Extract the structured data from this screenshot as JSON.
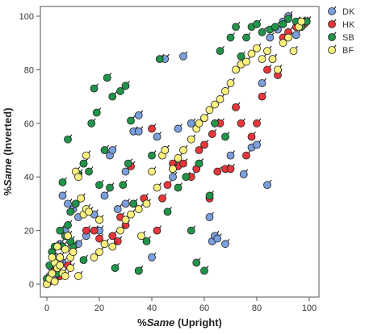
{
  "chart_data": {
    "type": "scatter",
    "xlabel_prefix": "%",
    "xlabel_emph": "Same",
    "xlabel_suffix": " (Upright)",
    "ylabel_prefix": "%",
    "ylabel_emph": "Same",
    "ylabel_suffix": "  (Inverted)",
    "xlim": [
      0,
      100
    ],
    "ylim": [
      0,
      100
    ],
    "xticks": [
      0,
      20,
      40,
      60,
      80,
      100
    ],
    "yticks": [
      0,
      20,
      40,
      60,
      80,
      100
    ],
    "grid": false,
    "legend_position": "top-right",
    "series": [
      {
        "name": "DK",
        "color": "#7b9fdc",
        "points": [
          [
            0,
            0
          ],
          [
            1,
            3
          ],
          [
            2,
            6
          ],
          [
            3,
            2
          ],
          [
            4,
            10
          ],
          [
            5,
            15
          ],
          [
            6,
            8
          ],
          [
            2,
            12
          ],
          [
            8,
            30
          ],
          [
            10,
            28
          ],
          [
            12,
            25
          ],
          [
            14,
            45
          ],
          [
            18,
            26
          ],
          [
            20,
            20
          ],
          [
            22,
            33
          ],
          [
            24,
            48
          ],
          [
            25,
            50
          ],
          [
            27,
            28
          ],
          [
            30,
            30
          ],
          [
            33,
            57
          ],
          [
            35,
            63
          ],
          [
            40,
            10
          ],
          [
            42,
            55
          ],
          [
            45,
            50
          ],
          [
            48,
            40
          ],
          [
            50,
            58
          ],
          [
            52,
            85
          ],
          [
            55,
            60
          ],
          [
            58,
            45
          ],
          [
            60,
            62
          ],
          [
            62,
            25
          ],
          [
            63,
            16
          ],
          [
            64,
            18
          ],
          [
            65,
            17
          ],
          [
            68,
            15
          ],
          [
            70,
            48
          ],
          [
            75,
            41
          ],
          [
            78,
            51
          ],
          [
            80,
            52
          ],
          [
            82,
            75
          ],
          [
            84,
            37
          ],
          [
            85,
            92
          ],
          [
            88,
            95
          ],
          [
            90,
            98
          ],
          [
            92,
            100
          ],
          [
            95,
            93
          ],
          [
            96,
            97
          ],
          [
            98,
            98
          ],
          [
            45,
            84
          ],
          [
            35,
            57
          ],
          [
            30,
            42
          ],
          [
            15,
            18
          ],
          [
            12,
            15
          ],
          [
            6,
            33
          ],
          [
            7,
            20
          ]
        ]
      },
      {
        "name": "HK",
        "color": "#e8363a",
        "points": [
          [
            1,
            1
          ],
          [
            3,
            5
          ],
          [
            5,
            3
          ],
          [
            8,
            7
          ],
          [
            10,
            12
          ],
          [
            15,
            20
          ],
          [
            18,
            20
          ],
          [
            20,
            17
          ],
          [
            22,
            15
          ],
          [
            25,
            18
          ],
          [
            27,
            16
          ],
          [
            28,
            25
          ],
          [
            30,
            22
          ],
          [
            32,
            44
          ],
          [
            35,
            5
          ],
          [
            37,
            32
          ],
          [
            40,
            58
          ],
          [
            42,
            20
          ],
          [
            44,
            32
          ],
          [
            46,
            37
          ],
          [
            48,
            45
          ],
          [
            50,
            44
          ],
          [
            52,
            45
          ],
          [
            55,
            40
          ],
          [
            57,
            43
          ],
          [
            58,
            50
          ],
          [
            60,
            52
          ],
          [
            62,
            32
          ],
          [
            63,
            56
          ],
          [
            65,
            42
          ],
          [
            66,
            60
          ],
          [
            68,
            43
          ],
          [
            70,
            43
          ],
          [
            72,
            66
          ],
          [
            74,
            60
          ],
          [
            76,
            48
          ],
          [
            78,
            55
          ],
          [
            80,
            60
          ],
          [
            82,
            70
          ],
          [
            84,
            80
          ],
          [
            86,
            84
          ],
          [
            88,
            78
          ],
          [
            90,
            92
          ],
          [
            92,
            94
          ],
          [
            95,
            96
          ],
          [
            97,
            98
          ],
          [
            98,
            97
          ],
          [
            99,
            98
          ]
        ]
      },
      {
        "name": "SB",
        "color": "#21944a",
        "points": [
          [
            0,
            2
          ],
          [
            1,
            7
          ],
          [
            2,
            12
          ],
          [
            3,
            14
          ],
          [
            4,
            4
          ],
          [
            5,
            20
          ],
          [
            6,
            14
          ],
          [
            7,
            18
          ],
          [
            8,
            22
          ],
          [
            9,
            27
          ],
          [
            10,
            14
          ],
          [
            11,
            30
          ],
          [
            12,
            41
          ],
          [
            14,
            45
          ],
          [
            16,
            42
          ],
          [
            17,
            60
          ],
          [
            18,
            73
          ],
          [
            19,
            64
          ],
          [
            20,
            37
          ],
          [
            22,
            50
          ],
          [
            23,
            77
          ],
          [
            24,
            36
          ],
          [
            25,
            70
          ],
          [
            26,
            6
          ],
          [
            28,
            72
          ],
          [
            29,
            37
          ],
          [
            30,
            74
          ],
          [
            31,
            45
          ],
          [
            32,
            61
          ],
          [
            33,
            30
          ],
          [
            35,
            5
          ],
          [
            38,
            16
          ],
          [
            40,
            48
          ],
          [
            43,
            84
          ],
          [
            46,
            27
          ],
          [
            48,
            43
          ],
          [
            50,
            36
          ],
          [
            53,
            40
          ],
          [
            55,
            20
          ],
          [
            57,
            8
          ],
          [
            58,
            45
          ],
          [
            60,
            5
          ],
          [
            62,
            33
          ],
          [
            64,
            60
          ],
          [
            66,
            87
          ],
          [
            68,
            55
          ],
          [
            70,
            92
          ],
          [
            72,
            96
          ],
          [
            74,
            85
          ],
          [
            76,
            92
          ],
          [
            78,
            96
          ],
          [
            80,
            97
          ],
          [
            82,
            94
          ],
          [
            85,
            95
          ],
          [
            87,
            96
          ],
          [
            90,
            97
          ],
          [
            92,
            99
          ],
          [
            95,
            98
          ],
          [
            97,
            96
          ],
          [
            99,
            98
          ],
          [
            8,
            54
          ],
          [
            6,
            38
          ],
          [
            9,
            16
          ],
          [
            14,
            9
          ]
        ]
      },
      {
        "name": "BF",
        "color": "#fbf17e",
        "points": [
          [
            0,
            0
          ],
          [
            1,
            2
          ],
          [
            2,
            4
          ],
          [
            3,
            8
          ],
          [
            4,
            6
          ],
          [
            5,
            10
          ],
          [
            6,
            4
          ],
          [
            7,
            13
          ],
          [
            8,
            18
          ],
          [
            9,
            10
          ],
          [
            10,
            12
          ],
          [
            11,
            42
          ],
          [
            12,
            40
          ],
          [
            13,
            32
          ],
          [
            14,
            26
          ],
          [
            15,
            28
          ],
          [
            16,
            27
          ],
          [
            18,
            10
          ],
          [
            20,
            12
          ],
          [
            22,
            15
          ],
          [
            25,
            14
          ],
          [
            28,
            20
          ],
          [
            30,
            24
          ],
          [
            32,
            26
          ],
          [
            35,
            28
          ],
          [
            36,
            18
          ],
          [
            38,
            30
          ],
          [
            40,
            42
          ],
          [
            42,
            36
          ],
          [
            44,
            48
          ],
          [
            45,
            50
          ],
          [
            48,
            43
          ],
          [
            50,
            47
          ],
          [
            52,
            50
          ],
          [
            55,
            54
          ],
          [
            57,
            58
          ],
          [
            58,
            60
          ],
          [
            60,
            62
          ],
          [
            62,
            65
          ],
          [
            64,
            67
          ],
          [
            66,
            69
          ],
          [
            68,
            72
          ],
          [
            70,
            75
          ],
          [
            72,
            80
          ],
          [
            74,
            82
          ],
          [
            76,
            83
          ],
          [
            78,
            86
          ],
          [
            80,
            88
          ],
          [
            82,
            84
          ],
          [
            84,
            87
          ],
          [
            86,
            84
          ],
          [
            88,
            80
          ],
          [
            90,
            90
          ],
          [
            92,
            92
          ],
          [
            94,
            87
          ],
          [
            96,
            96
          ],
          [
            97,
            98
          ],
          [
            3,
            1
          ],
          [
            5,
            7
          ],
          [
            7,
            3
          ],
          [
            9,
            6
          ],
          [
            12,
            3
          ],
          [
            2,
            10
          ],
          [
            4,
            14
          ],
          [
            15,
            48
          ],
          [
            20,
            24
          ]
        ]
      }
    ]
  }
}
